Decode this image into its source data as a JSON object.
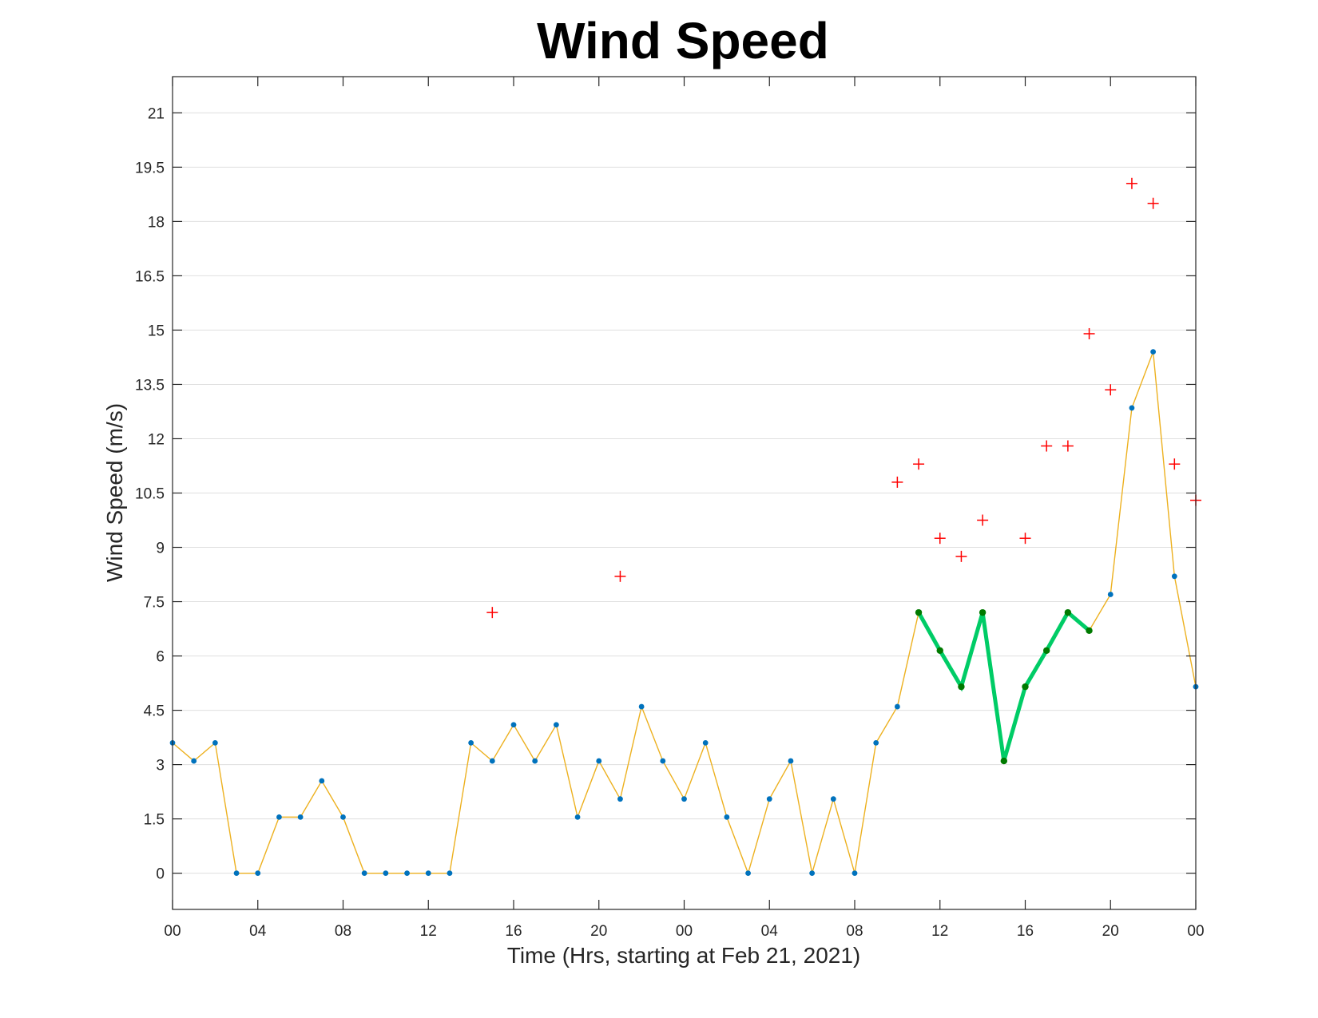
{
  "chart_data": {
    "type": "line",
    "title": "Wind Speed",
    "xlabel": "Time (Hrs, starting at Feb 21, 2021)",
    "ylabel": "Wind Speed (m/s)",
    "xlim": [
      0,
      48
    ],
    "ylim": [
      -1.0,
      22.0
    ],
    "x_ticks": [
      0,
      4,
      8,
      12,
      16,
      20,
      24,
      28,
      32,
      36,
      40,
      44,
      48
    ],
    "x_tick_labels": [
      "00",
      "04",
      "08",
      "12",
      "16",
      "20",
      "00",
      "04",
      "08",
      "12",
      "16",
      "20",
      "00"
    ],
    "y_ticks": [
      0,
      1.5,
      3,
      4.5,
      6,
      7.5,
      9,
      10.5,
      12,
      13.5,
      15,
      16.5,
      18,
      19.5,
      21
    ],
    "y_tick_labels": [
      "0",
      "1.5",
      "3",
      "4.5",
      "6",
      "7.5",
      "9",
      "10.5",
      "12",
      "13.5",
      "15",
      "16.5",
      "18",
      "19.5",
      "21"
    ],
    "grid": "horizontal",
    "series": [
      {
        "color": "#EDB120",
        "marker_color": "#0072BD",
        "style": "line with dot markers",
        "x": [
          0,
          1,
          2,
          3,
          4,
          5,
          6,
          7,
          8,
          9,
          10,
          11,
          12,
          13,
          14,
          15,
          16,
          17,
          18,
          19,
          20,
          21,
          22,
          23,
          24,
          25,
          26,
          27,
          28,
          29,
          30,
          31,
          32,
          33,
          34,
          35,
          36,
          37,
          38,
          39,
          40,
          41,
          42,
          43,
          44,
          45,
          46,
          47,
          48
        ],
        "values": [
          3.6,
          3.1,
          3.6,
          0,
          0,
          1.55,
          1.55,
          2.55,
          1.55,
          0,
          0,
          0,
          0,
          0,
          3.6,
          3.1,
          4.1,
          3.1,
          4.1,
          1.55,
          3.1,
          2.05,
          4.6,
          3.1,
          2.05,
          3.6,
          1.55,
          0,
          2.05,
          3.1,
          0,
          2.05,
          0,
          3.6,
          4.6,
          7.2,
          6.15,
          5.15,
          7.2,
          3.1,
          5.15,
          6.15,
          7.2,
          6.7,
          7.7,
          12.85,
          14.4,
          8.2,
          5.15
        ]
      },
      {
        "color": "#00CC66",
        "marker_color": "#007A00",
        "style": "thick line with dot markers",
        "x": [
          35,
          36,
          37,
          38,
          39,
          40,
          41,
          42,
          43
        ],
        "values": [
          7.2,
          6.15,
          5.15,
          7.2,
          3.1,
          5.15,
          6.15,
          7.2,
          6.7
        ]
      },
      {
        "color": "#FF0000",
        "style": "plus markers",
        "x": [
          15,
          21,
          34,
          35,
          36,
          37,
          38,
          40,
          41,
          42,
          43,
          44,
          45,
          46,
          47,
          48
        ],
        "values": [
          7.2,
          8.2,
          10.8,
          11.3,
          9.25,
          8.75,
          9.75,
          9.25,
          11.8,
          11.8,
          14.9,
          13.35,
          19.05,
          18.5,
          11.3,
          10.3
        ]
      }
    ]
  }
}
